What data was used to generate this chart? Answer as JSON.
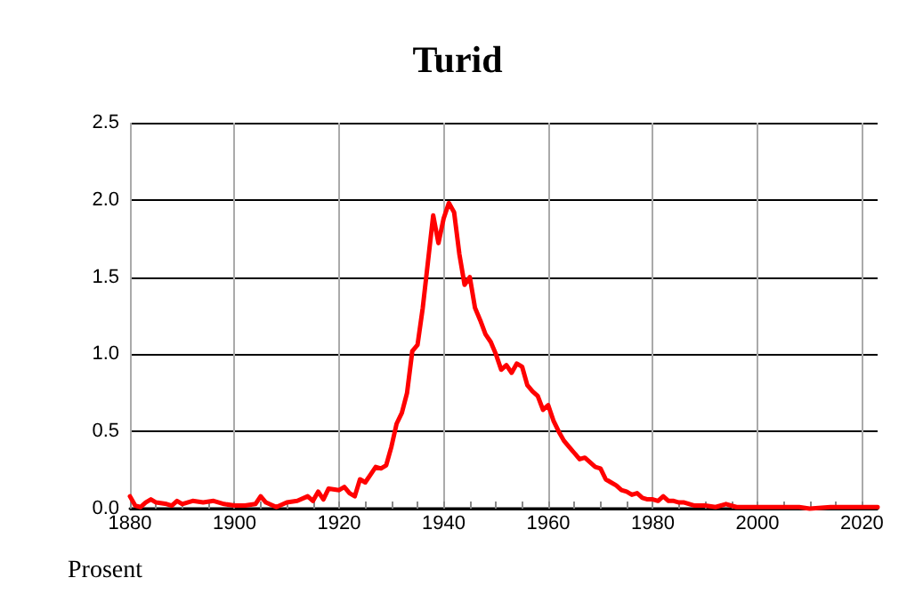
{
  "chart_data": {
    "type": "line",
    "title": "Turid",
    "ylabel": "Prosent",
    "grid": true,
    "marker": "none",
    "line_style": "solid",
    "xlim": [
      1880,
      2023
    ],
    "xticks": [
      1880,
      {
        "value": 1885,
        "label": null
      },
      {
        "value": 1890,
        "label": null
      },
      {
        "value": 1895,
        "label": null
      },
      1900,
      {
        "value": 1905,
        "label": null
      },
      {
        "value": 1910,
        "label": null
      },
      {
        "value": 1915,
        "label": null
      },
      1920,
      {
        "value": 1925,
        "label": null
      },
      {
        "value": 1930,
        "label": null
      },
      {
        "value": 1935,
        "label": null
      },
      1940,
      {
        "value": 1945,
        "label": null
      },
      {
        "value": 1950,
        "label": null
      },
      {
        "value": 1955,
        "label": null
      },
      1960,
      {
        "value": 1965,
        "label": null
      },
      {
        "value": 1970,
        "label": null
      },
      {
        "value": 1975,
        "label": null
      },
      1980,
      {
        "value": 1985,
        "label": null
      },
      {
        "value": 1990,
        "label": null
      },
      {
        "value": 1995,
        "label": null
      },
      2000,
      {
        "value": 2005,
        "label": null
      },
      {
        "value": 2010,
        "label": null
      },
      {
        "value": 2015,
        "label": null
      },
      2020
    ],
    "ylim": [
      0,
      2.5
    ],
    "yticks": [
      {
        "value": 0,
        "label": "0.0"
      },
      {
        "value": 0.5,
        "label": "0.5"
      },
      {
        "value": 1,
        "label": "1.0"
      },
      {
        "value": 1.5,
        "label": "1.5"
      },
      {
        "value": 2,
        "label": "2.0"
      },
      {
        "value": 2.5,
        "label": "2.5"
      }
    ],
    "x": [
      1880,
      1881,
      1882,
      1883,
      1884,
      1885,
      1887,
      1888,
      1889,
      1890,
      1892,
      1894,
      1896,
      1898,
      1900,
      1902,
      1904,
      1905,
      1906,
      1908,
      1910,
      1912,
      1914,
      1915,
      1916,
      1917,
      1918,
      1920,
      1921,
      1922,
      1923,
      1924,
      1925,
      1926,
      1927,
      1928,
      1929,
      1930,
      1931,
      1932,
      1933,
      1934,
      1935,
      1936,
      1937,
      1938,
      1939,
      1940,
      1941,
      1942,
      1943,
      1944,
      1945,
      1946,
      1947,
      1948,
      1949,
      1950,
      1951,
      1952,
      1953,
      1954,
      1955,
      1956,
      1957,
      1958,
      1959,
      1960,
      1961,
      1962,
      1963,
      1964,
      1965,
      1966,
      1967,
      1968,
      1969,
      1970,
      1971,
      1972,
      1973,
      1974,
      1975,
      1976,
      1977,
      1978,
      1979,
      1980,
      1981,
      1982,
      1983,
      1984,
      1985,
      1986,
      1987,
      1988,
      1990,
      1992,
      1994,
      1996,
      1998,
      2000,
      2004,
      2008,
      2010,
      2014,
      2018,
      2022,
      2023
    ],
    "series": [
      {
        "color": "#ff0000",
        "values": [
          0.08,
          0.02,
          0.01,
          0.04,
          0.06,
          0.04,
          0.03,
          0.02,
          0.05,
          0.03,
          0.05,
          0.04,
          0.05,
          0.03,
          0.02,
          0.02,
          0.03,
          0.08,
          0.04,
          0.01,
          0.04,
          0.05,
          0.08,
          0.05,
          0.11,
          0.06,
          0.13,
          0.12,
          0.14,
          0.1,
          0.08,
          0.19,
          0.17,
          0.22,
          0.27,
          0.26,
          0.28,
          0.4,
          0.55,
          0.62,
          0.75,
          1.02,
          1.06,
          1.3,
          1.6,
          1.9,
          1.72,
          1.88,
          1.98,
          1.92,
          1.65,
          1.45,
          1.5,
          1.3,
          1.22,
          1.13,
          1.08,
          1.0,
          0.9,
          0.93,
          0.88,
          0.94,
          0.92,
          0.8,
          0.76,
          0.73,
          0.64,
          0.67,
          0.57,
          0.5,
          0.44,
          0.4,
          0.36,
          0.32,
          0.33,
          0.3,
          0.27,
          0.26,
          0.19,
          0.17,
          0.15,
          0.12,
          0.11,
          0.09,
          0.1,
          0.07,
          0.06,
          0.06,
          0.05,
          0.08,
          0.05,
          0.05,
          0.04,
          0.04,
          0.03,
          0.02,
          0.02,
          0.01,
          0.03,
          0.01,
          0.01,
          0.01,
          0.01,
          0.01,
          0.0,
          0.01,
          0.01,
          0.01,
          0.01
        ]
      }
    ]
  }
}
